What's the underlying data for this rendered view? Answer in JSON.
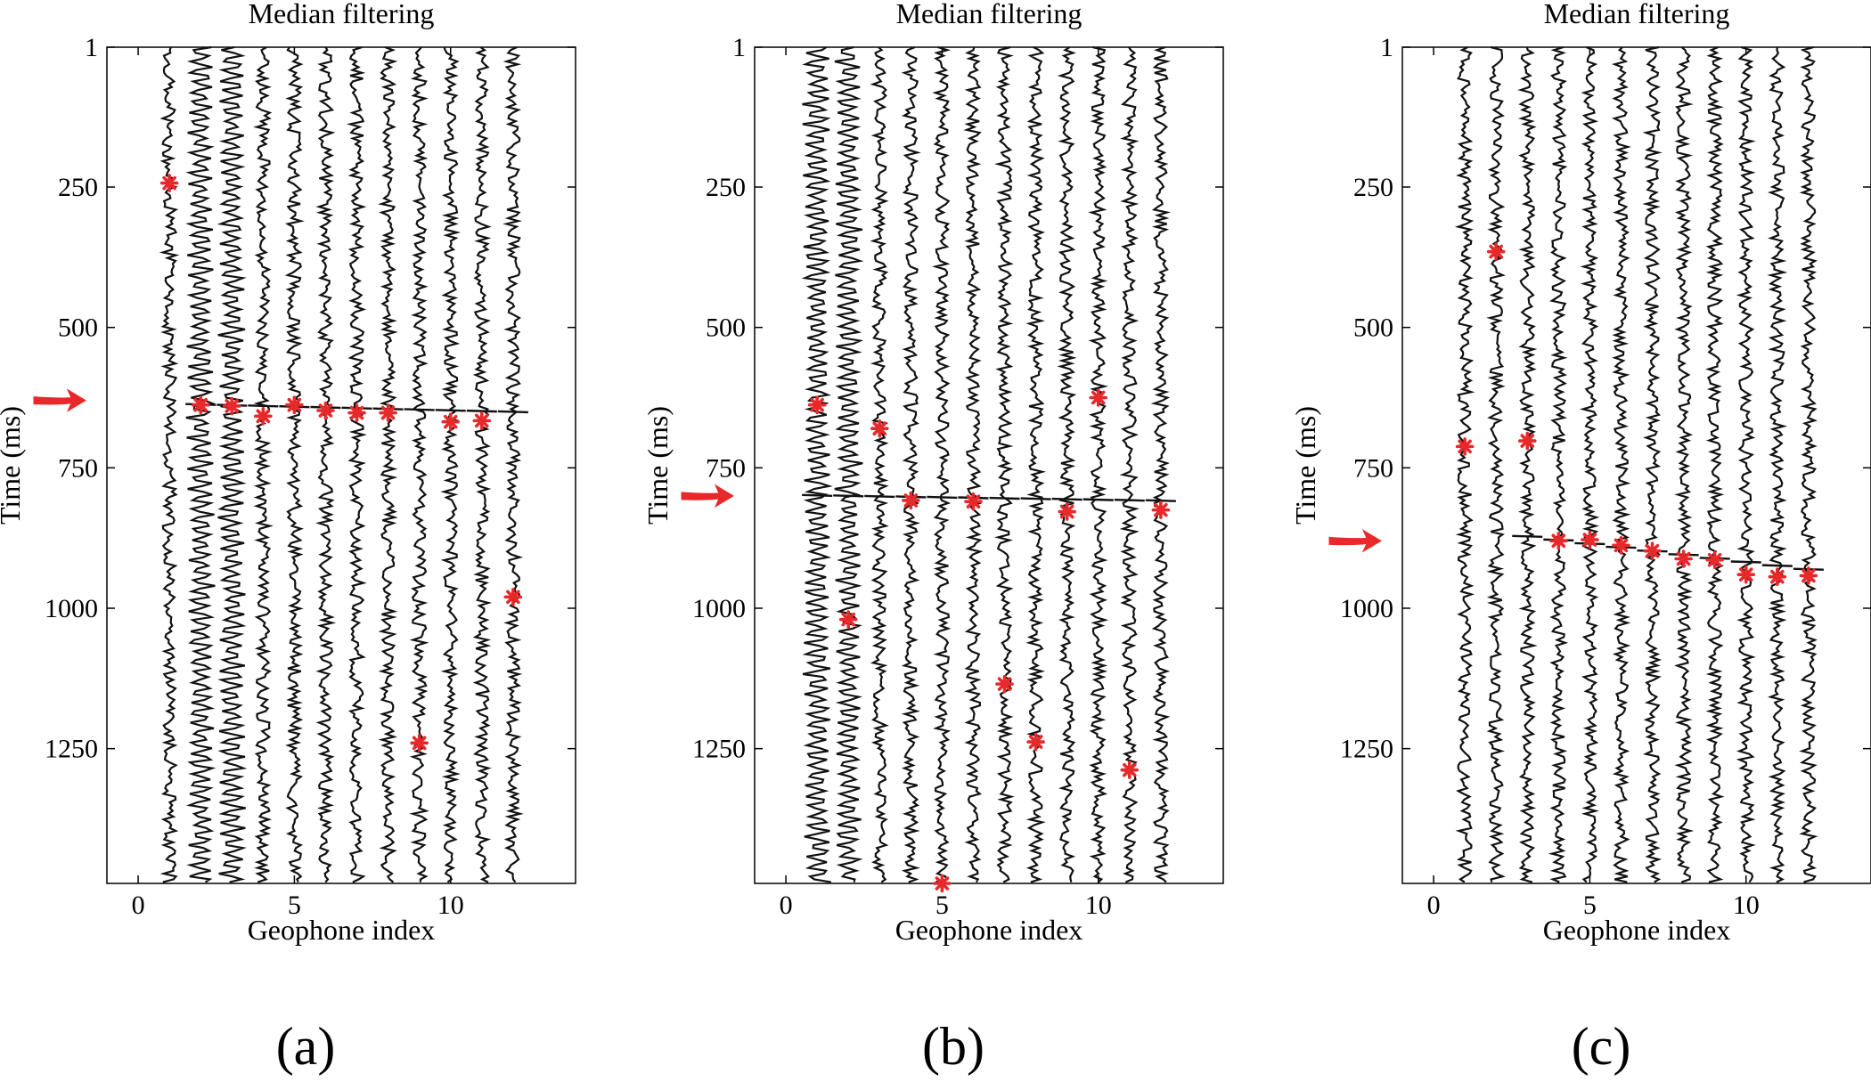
{
  "chart_data": [
    {
      "panel": "(a)",
      "type": "scatter",
      "title": "Median filtering",
      "xlabel": "Geophone index",
      "ylabel": "Time (ms)",
      "xlim": [
        -1,
        14
      ],
      "ylim": [
        1,
        1490
      ],
      "y_reversed": true,
      "xticks": [
        "0",
        "5",
        "10"
      ],
      "yticks": [
        "1",
        "250",
        "500",
        "750",
        "1000",
        "1250"
      ],
      "traces": [
        1,
        2,
        3,
        4,
        5,
        6,
        7,
        8,
        9,
        10,
        11,
        12
      ],
      "arrow_time": 630,
      "picks": {
        "x": [
          1,
          2,
          3,
          4,
          5,
          6,
          7,
          8,
          9,
          10,
          11,
          12
        ],
        "y": [
          243,
          638,
          640,
          658,
          638,
          648,
          652,
          652,
          1240,
          668,
          666,
          980
        ]
      },
      "event_line": {
        "x": [
          1.7,
          12.4
        ],
        "y": [
          636,
          650
        ]
      },
      "strong_traces": [
        2,
        3
      ]
    },
    {
      "panel": "(b)",
      "type": "scatter",
      "title": "Median filtering",
      "xlabel": "Geophone index",
      "ylabel": "Time (ms)",
      "xlim": [
        -1,
        14
      ],
      "ylim": [
        1,
        1490
      ],
      "y_reversed": true,
      "xticks": [
        "0",
        "5",
        "10"
      ],
      "yticks": [
        "1",
        "250",
        "500",
        "750",
        "1000",
        "1250"
      ],
      "traces": [
        1,
        2,
        3,
        4,
        5,
        6,
        7,
        8,
        9,
        10,
        11,
        12
      ],
      "arrow_time": 800,
      "picks": {
        "x": [
          1,
          2,
          3,
          4,
          5,
          6,
          7,
          8,
          9,
          10,
          11,
          12
        ],
        "y": [
          638,
          1020,
          680,
          808,
          1490,
          810,
          1135,
          1238,
          828,
          625,
          1288,
          825
        ]
      },
      "event_line": {
        "x": [
          0.6,
          12.4
        ],
        "y": [
          798,
          808
        ]
      },
      "strong_traces": [
        1,
        2
      ]
    },
    {
      "panel": "(c)",
      "type": "scatter",
      "title": "Median filtering",
      "xlabel": "Geophone index",
      "ylabel": "Time (ms)",
      "xlim": [
        -1,
        14
      ],
      "ylim": [
        1,
        1490
      ],
      "y_reversed": true,
      "xticks": [
        "0",
        "5",
        "10"
      ],
      "yticks": [
        "1",
        "250",
        "500",
        "750",
        "1000",
        "1250"
      ],
      "traces": [
        1,
        2,
        3,
        4,
        5,
        6,
        7,
        8,
        9,
        10,
        11,
        12
      ],
      "arrow_time": 880,
      "picks": {
        "x": [
          1,
          2,
          3,
          4,
          5,
          6,
          7,
          8,
          9,
          10,
          11,
          12
        ],
        "y": [
          712,
          365,
          702,
          880,
          878,
          888,
          898,
          912,
          914,
          940,
          944,
          942
        ]
      },
      "event_line": {
        "x": [
          2.2,
          12.8
        ],
        "y": [
          866,
          935
        ]
      },
      "strong_traces": []
    }
  ],
  "colors": {
    "trace": "#111111",
    "pick": "#e8292b",
    "arrow": "#e8292b",
    "axis": "#000000"
  }
}
